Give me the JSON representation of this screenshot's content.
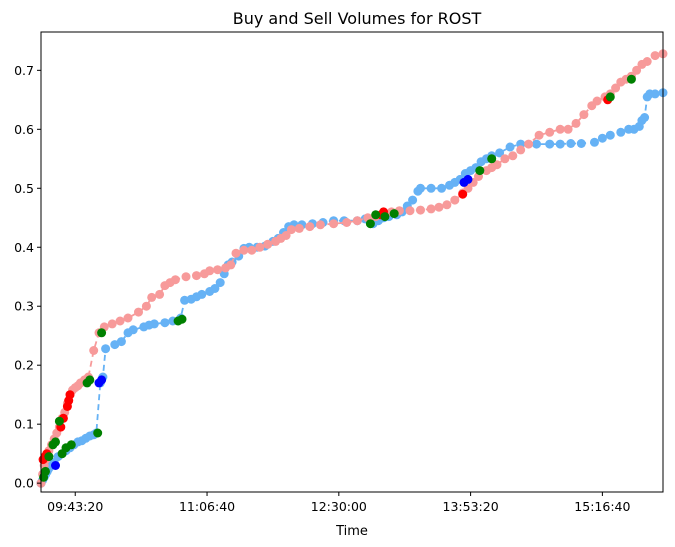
{
  "chart_data": {
    "type": "scatter",
    "title": "Buy and Sell Volumes for ROST",
    "xlabel": "Time",
    "ylabel": "",
    "x_ticks": [
      "09:43:20",
      "11:06:40",
      "12:30:00",
      "13:53:20",
      "15:16:40"
    ],
    "x_tick_seconds": [
      34999,
      40000,
      45000,
      50000,
      55000
    ],
    "xlim_seconds": [
      33700,
      57300
    ],
    "y_ticks": [
      "0.0",
      "0.1",
      "0.2",
      "0.3",
      "0.4",
      "0.5",
      "0.6",
      "0.7"
    ],
    "y_tick_values": [
      0.0,
      0.1,
      0.2,
      0.3,
      0.4,
      0.5,
      0.6,
      0.7
    ],
    "ylim": [
      -0.015,
      0.765
    ],
    "grid": false,
    "legend": "none",
    "colors": {
      "buy_line": "#66b2f5",
      "sell_line": "#f79a9a",
      "buy_highlight": "#0000ff",
      "sell_highlight": "#ff0000",
      "both_highlight": "#008000"
    },
    "series": [
      {
        "color": "#66b2f5",
        "points": [
          [
            33700,
            0.0
          ],
          [
            33760,
            0.005
          ],
          [
            33820,
            0.01
          ],
          [
            33880,
            0.015
          ],
          [
            33940,
            0.02
          ],
          [
            34000,
            0.025
          ],
          [
            34100,
            0.03
          ],
          [
            34200,
            0.035
          ],
          [
            34350,
            0.045
          ],
          [
            34500,
            0.05
          ],
          [
            34650,
            0.055
          ],
          [
            34800,
            0.06
          ],
          [
            34950,
            0.065
          ],
          [
            35100,
            0.07
          ],
          [
            35250,
            0.072
          ],
          [
            35400,
            0.076
          ],
          [
            35550,
            0.08
          ],
          [
            35700,
            0.082
          ],
          [
            35800,
            0.085
          ],
          [
            35950,
            0.17
          ],
          [
            36050,
            0.18
          ],
          [
            36150,
            0.228
          ],
          [
            36500,
            0.235
          ],
          [
            36750,
            0.24
          ],
          [
            37000,
            0.255
          ],
          [
            37200,
            0.26
          ],
          [
            37600,
            0.265
          ],
          [
            37800,
            0.268
          ],
          [
            38000,
            0.27
          ],
          [
            38400,
            0.272
          ],
          [
            38700,
            0.275
          ],
          [
            39000,
            0.28
          ],
          [
            39150,
            0.31
          ],
          [
            39400,
            0.312
          ],
          [
            39600,
            0.316
          ],
          [
            39800,
            0.32
          ],
          [
            40100,
            0.325
          ],
          [
            40300,
            0.33
          ],
          [
            40500,
            0.34
          ],
          [
            40650,
            0.355
          ],
          [
            40800,
            0.37
          ],
          [
            40950,
            0.375
          ],
          [
            41200,
            0.385
          ],
          [
            41400,
            0.398
          ],
          [
            41600,
            0.4
          ],
          [
            41900,
            0.4
          ],
          [
            42200,
            0.402
          ],
          [
            42500,
            0.41
          ],
          [
            42700,
            0.415
          ],
          [
            42900,
            0.425
          ],
          [
            43100,
            0.435
          ],
          [
            43300,
            0.438
          ],
          [
            43600,
            0.438
          ],
          [
            44000,
            0.44
          ],
          [
            44400,
            0.442
          ],
          [
            44800,
            0.445
          ],
          [
            45200,
            0.445
          ],
          [
            45700,
            0.445
          ],
          [
            46000,
            0.448
          ],
          [
            46300,
            0.44
          ],
          [
            46500,
            0.445
          ],
          [
            46700,
            0.45
          ],
          [
            46900,
            0.452
          ],
          [
            47200,
            0.455
          ],
          [
            47400,
            0.46
          ],
          [
            47600,
            0.47
          ],
          [
            47800,
            0.48
          ],
          [
            48000,
            0.495
          ],
          [
            48100,
            0.5
          ],
          [
            48500,
            0.5
          ],
          [
            48900,
            0.5
          ],
          [
            49200,
            0.505
          ],
          [
            49400,
            0.51
          ],
          [
            49600,
            0.515
          ],
          [
            49800,
            0.525
          ],
          [
            50000,
            0.53
          ],
          [
            50200,
            0.535
          ],
          [
            50400,
            0.545
          ],
          [
            50600,
            0.55
          ],
          [
            50800,
            0.555
          ],
          [
            51100,
            0.56
          ],
          [
            51500,
            0.57
          ],
          [
            51900,
            0.575
          ],
          [
            52500,
            0.575
          ],
          [
            53000,
            0.575
          ],
          [
            53400,
            0.575
          ],
          [
            53800,
            0.576
          ],
          [
            54200,
            0.576
          ],
          [
            54700,
            0.578
          ],
          [
            55000,
            0.585
          ],
          [
            55300,
            0.59
          ],
          [
            55700,
            0.595
          ],
          [
            56000,
            0.6
          ],
          [
            56200,
            0.6
          ],
          [
            56400,
            0.605
          ],
          [
            56500,
            0.615
          ],
          [
            56600,
            0.62
          ],
          [
            56700,
            0.655
          ],
          [
            56800,
            0.66
          ],
          [
            57000,
            0.66
          ],
          [
            57300,
            0.662
          ]
        ]
      },
      {
        "color": "#f79a9a",
        "points": [
          [
            33700,
            0.0
          ],
          [
            33760,
            0.015
          ],
          [
            33820,
            0.03
          ],
          [
            33880,
            0.04
          ],
          [
            33940,
            0.05
          ],
          [
            34000,
            0.055
          ],
          [
            34100,
            0.065
          ],
          [
            34200,
            0.075
          ],
          [
            34300,
            0.085
          ],
          [
            34400,
            0.095
          ],
          [
            34500,
            0.11
          ],
          [
            34600,
            0.12
          ],
          [
            34700,
            0.135
          ],
          [
            34800,
            0.15
          ],
          [
            34900,
            0.158
          ],
          [
            35000,
            0.162
          ],
          [
            35100,
            0.165
          ],
          [
            35200,
            0.17
          ],
          [
            35350,
            0.175
          ],
          [
            35500,
            0.18
          ],
          [
            35700,
            0.225
          ],
          [
            35900,
            0.255
          ],
          [
            36100,
            0.265
          ],
          [
            36400,
            0.27
          ],
          [
            36700,
            0.275
          ],
          [
            37000,
            0.28
          ],
          [
            37400,
            0.29
          ],
          [
            37700,
            0.3
          ],
          [
            37900,
            0.315
          ],
          [
            38200,
            0.32
          ],
          [
            38400,
            0.335
          ],
          [
            38600,
            0.34
          ],
          [
            38800,
            0.345
          ],
          [
            39200,
            0.35
          ],
          [
            39600,
            0.352
          ],
          [
            39900,
            0.355
          ],
          [
            40100,
            0.36
          ],
          [
            40400,
            0.362
          ],
          [
            40700,
            0.365
          ],
          [
            40900,
            0.37
          ],
          [
            41100,
            0.39
          ],
          [
            41400,
            0.395
          ],
          [
            41700,
            0.395
          ],
          [
            42000,
            0.4
          ],
          [
            42300,
            0.405
          ],
          [
            42600,
            0.41
          ],
          [
            42800,
            0.415
          ],
          [
            43000,
            0.42
          ],
          [
            43200,
            0.43
          ],
          [
            43500,
            0.432
          ],
          [
            43900,
            0.435
          ],
          [
            44300,
            0.438
          ],
          [
            44800,
            0.44
          ],
          [
            45300,
            0.442
          ],
          [
            45700,
            0.445
          ],
          [
            46100,
            0.45
          ],
          [
            46400,
            0.452
          ],
          [
            46700,
            0.455
          ],
          [
            47000,
            0.46
          ],
          [
            47300,
            0.462
          ],
          [
            47700,
            0.462
          ],
          [
            48100,
            0.463
          ],
          [
            48500,
            0.465
          ],
          [
            48800,
            0.468
          ],
          [
            49100,
            0.472
          ],
          [
            49400,
            0.48
          ],
          [
            49700,
            0.492
          ],
          [
            49900,
            0.5
          ],
          [
            50100,
            0.51
          ],
          [
            50300,
            0.52
          ],
          [
            50600,
            0.53
          ],
          [
            50800,
            0.535
          ],
          [
            51000,
            0.54
          ],
          [
            51300,
            0.55
          ],
          [
            51600,
            0.555
          ],
          [
            51900,
            0.565
          ],
          [
            52200,
            0.575
          ],
          [
            52600,
            0.59
          ],
          [
            53000,
            0.595
          ],
          [
            53400,
            0.6
          ],
          [
            53700,
            0.6
          ],
          [
            54000,
            0.61
          ],
          [
            54300,
            0.625
          ],
          [
            54600,
            0.64
          ],
          [
            54800,
            0.648
          ],
          [
            55100,
            0.655
          ],
          [
            55300,
            0.66
          ],
          [
            55500,
            0.67
          ],
          [
            55700,
            0.68
          ],
          [
            55900,
            0.685
          ],
          [
            56100,
            0.69
          ],
          [
            56300,
            0.7
          ],
          [
            56500,
            0.71
          ],
          [
            56700,
            0.715
          ],
          [
            57000,
            0.725
          ],
          [
            57300,
            0.728
          ]
        ]
      }
    ],
    "highlights": [
      {
        "color": "#ff0000",
        "points": [
          [
            33780,
            0.04
          ],
          [
            33850,
            0.045
          ],
          [
            33920,
            0.05
          ],
          [
            34450,
            0.095
          ],
          [
            34550,
            0.11
          ],
          [
            34700,
            0.13
          ],
          [
            34750,
            0.14
          ],
          [
            34800,
            0.15
          ],
          [
            46600,
            0.455
          ],
          [
            46700,
            0.46
          ],
          [
            49700,
            0.49
          ],
          [
            55200,
            0.65
          ]
        ]
      },
      {
        "color": "#0000ff",
        "points": [
          [
            34250,
            0.03
          ],
          [
            35900,
            0.17
          ],
          [
            36000,
            0.175
          ],
          [
            49750,
            0.51
          ],
          [
            49900,
            0.515
          ]
        ]
      },
      {
        "color": "#008000",
        "points": [
          [
            33800,
            0.01
          ],
          [
            33870,
            0.02
          ],
          [
            34000,
            0.045
          ],
          [
            34150,
            0.065
          ],
          [
            34250,
            0.07
          ],
          [
            34400,
            0.105
          ],
          [
            34500,
            0.05
          ],
          [
            34650,
            0.06
          ],
          [
            34850,
            0.065
          ],
          [
            35450,
            0.17
          ],
          [
            35550,
            0.175
          ],
          [
            35850,
            0.085
          ],
          [
            36000,
            0.255
          ],
          [
            38900,
            0.275
          ],
          [
            39050,
            0.278
          ],
          [
            46200,
            0.44
          ],
          [
            46400,
            0.455
          ],
          [
            46750,
            0.452
          ],
          [
            47100,
            0.457
          ],
          [
            50350,
            0.53
          ],
          [
            50800,
            0.55
          ],
          [
            55300,
            0.655
          ],
          [
            56100,
            0.685
          ]
        ]
      }
    ]
  }
}
